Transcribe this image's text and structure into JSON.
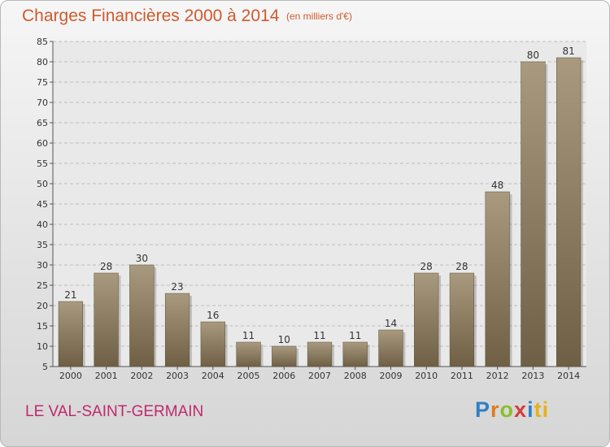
{
  "header": {
    "title": "Charges Financières 2000 à 2014",
    "subtitle": "(en milliers d'€)"
  },
  "footer": {
    "commune": "LE VAL-SAINT-GERMAIN",
    "logo_letters": [
      "P",
      "r",
      "o",
      "x",
      "i",
      "ti"
    ]
  },
  "colors": {
    "bar_top": "#a99a7f",
    "bar_bottom": "#6e5f45",
    "title": "#cf5a2d",
    "commune": "#c0296e"
  },
  "chart_data": {
    "type": "bar",
    "title": "Charges Financières 2000 à 2014",
    "subtitle": "(en milliers d'€)",
    "categories": [
      "2000",
      "2001",
      "2002",
      "2003",
      "2004",
      "2005",
      "2006",
      "2007",
      "2008",
      "2009",
      "2010",
      "2011",
      "2012",
      "2013",
      "2014"
    ],
    "values": [
      21,
      28,
      30,
      23,
      16,
      11,
      10,
      11,
      11,
      14,
      28,
      28,
      48,
      80,
      81
    ],
    "ylim": [
      5,
      85
    ],
    "yticks": [
      5,
      10,
      15,
      20,
      25,
      30,
      35,
      40,
      45,
      50,
      55,
      60,
      65,
      70,
      75,
      80,
      85
    ],
    "grid": true,
    "xlabel": "",
    "ylabel": ""
  }
}
